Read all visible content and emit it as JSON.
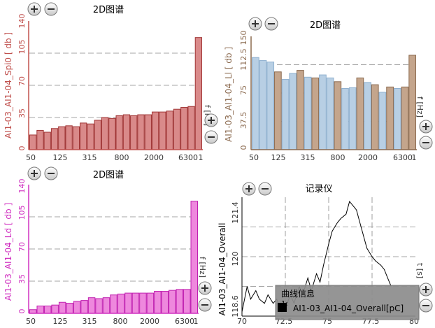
{
  "panels": [
    {
      "title": "2D图谱",
      "ylabel": "AI1-03_AI1-04_Spi0 [ db ]",
      "xunit": "f [Hz]",
      "y_ticks": [
        "140",
        "105",
        "70",
        "35",
        "0"
      ],
      "x_ticks": [
        "50",
        "125",
        "315",
        "800",
        "2000",
        "6300",
        "1"
      ],
      "colors": {
        "fill": "#d98a8a",
        "stroke": "#a03535",
        "axis": "#c0504d"
      }
    },
    {
      "title": "2D图谱",
      "ylabel": "AI1-03_AI1-04_Ll [ db ]",
      "xunit": "f [Hz]",
      "y_ticks": [
        "150",
        "112.5",
        "75",
        "37.5",
        "0"
      ],
      "x_ticks": [
        "50",
        "125",
        "315",
        "800",
        "2000",
        "6300",
        "1"
      ],
      "colors": {
        "fill_a": "#b8cfe4",
        "fill_b": "#c4a58c",
        "stroke_b": "#8b6a4f",
        "axis": "#8b6a4f"
      }
    },
    {
      "title": "2D图谱",
      "ylabel": "AI1-03_AI1-04_Ld [ db ]",
      "xunit": "f [Hz]",
      "y_ticks": [
        "140",
        "105",
        "70",
        "35",
        "0"
      ],
      "x_ticks": [
        "50",
        "125",
        "315",
        "800",
        "2000",
        "6300",
        "1"
      ],
      "colors": {
        "fill": "#ee88dd",
        "stroke": "#c020b0",
        "axis": "#d030c0"
      }
    },
    {
      "title": "记录仪",
      "ylabel": "AI1-03_AI1-04_Overall",
      "xunit": "t [s]",
      "y_ticks": [
        "121.4",
        "120",
        "118.6"
      ],
      "x_ticks": [
        "70",
        "72.5",
        "75",
        "77.5",
        "80"
      ],
      "legend_title": "曲线信息",
      "legend_index": "1:",
      "legend_entry": "AI1-03_AI1-04_Overall[pC]",
      "colors": {
        "line": "#000000",
        "legend_bg": "#8c8c8c",
        "axis": "#000000"
      }
    }
  ],
  "icons": {
    "zoom_in": "plus-circle-icon",
    "zoom_out": "minus-circle-icon"
  },
  "chart_data": [
    {
      "type": "bar",
      "title": "2D图谱",
      "ylabel": "AI1-03_AI1-04_Spi0 [ db ]",
      "xlabel": "f [Hz]",
      "ylim": [
        0,
        140
      ],
      "grid": true,
      "values": [
        16,
        21,
        19,
        23,
        25,
        26,
        25,
        29,
        28,
        32,
        35,
        34,
        37,
        38,
        37,
        38,
        38,
        41,
        41,
        42,
        44,
        46,
        47,
        122
      ]
    },
    {
      "type": "bar",
      "title": "2D图谱",
      "ylabel": "AI1-03_AI1-04_Ll [ db ]",
      "xlabel": "f [Hz]",
      "ylim": [
        0,
        150
      ],
      "grid": true,
      "values": [
        122,
        118,
        116,
        103,
        93,
        101,
        105,
        96,
        95,
        99,
        95,
        90,
        81,
        82,
        95,
        89,
        86,
        76,
        83,
        81,
        83,
        125
      ],
      "highlight": [
        false,
        false,
        false,
        true,
        false,
        false,
        true,
        false,
        true,
        false,
        false,
        true,
        false,
        false,
        true,
        false,
        true,
        false,
        true,
        false,
        true,
        true
      ]
    },
    {
      "type": "bar",
      "title": "2D图谱",
      "ylabel": "AI1-03_AI1-04_Ld [ db ]",
      "xlabel": "f [Hz]",
      "ylim": [
        0,
        140
      ],
      "grid": true,
      "values": [
        4,
        8,
        8,
        9,
        12,
        11,
        13,
        14,
        17,
        16,
        17,
        20,
        21,
        22,
        22,
        22,
        22,
        24,
        24,
        25,
        26,
        26,
        122
      ]
    },
    {
      "type": "line",
      "title": "记录仪",
      "ylabel": "AI1-03_AI1-04_Overall",
      "xlabel": "t [s]",
      "xlim": [
        70,
        80
      ],
      "ylim": [
        118.6,
        121.4
      ],
      "grid": true,
      "x": [
        70.0,
        70.3,
        70.5,
        70.8,
        71.0,
        71.3,
        71.5,
        71.8,
        72.0,
        72.3,
        72.5,
        72.8,
        73.0,
        73.3,
        73.5,
        73.8,
        74.0,
        74.3,
        74.5,
        74.7,
        75.0,
        75.2,
        75.5,
        75.7,
        76.0,
        76.2,
        76.4,
        76.6,
        76.8,
        77.0,
        77.2,
        77.5,
        77.7,
        78.0,
        78.2,
        78.4,
        78.6
      ],
      "y": [
        118.7,
        119.3,
        119.0,
        119.2,
        119.0,
        118.9,
        119.1,
        118.9,
        119.0,
        118.7,
        118.8,
        119.1,
        118.9,
        119.3,
        119.1,
        119.5,
        119.2,
        119.6,
        119.4,
        119.8,
        120.3,
        120.6,
        120.8,
        120.9,
        121.0,
        121.3,
        121.2,
        121.1,
        120.8,
        120.5,
        120.2,
        120.0,
        119.9,
        119.8,
        119.7,
        119.5,
        119.3
      ]
    }
  ]
}
